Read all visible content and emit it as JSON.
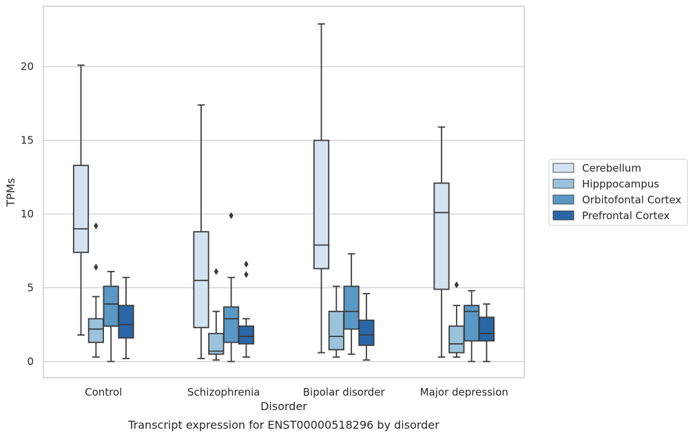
{
  "chart_data": {
    "type": "box",
    "title": "",
    "xlabel": "Disorder",
    "ylabel": "TPMs",
    "caption": "Transcript expression for ENST00000518296 by disorder",
    "ylim": [
      -1.1,
      24.1
    ],
    "yticks": [
      0,
      5,
      10,
      15,
      20
    ],
    "grid": "horizontal",
    "legend_position": "center-right",
    "categories": [
      "Control",
      "Schizophrenia",
      "Bipolar disorder",
      "Major depression"
    ],
    "series": [
      {
        "name": "Cerebellum",
        "color": "#d4e3f2",
        "boxes": [
          {
            "whislo": 1.8,
            "q1": 7.4,
            "med": 9.0,
            "q3": 13.3,
            "whishi": 20.1,
            "fliers": []
          },
          {
            "whislo": 0.2,
            "q1": 2.3,
            "med": 5.5,
            "q3": 8.8,
            "whishi": 17.4,
            "fliers": []
          },
          {
            "whislo": 0.6,
            "q1": 6.3,
            "med": 7.9,
            "q3": 15.0,
            "whishi": 22.9,
            "fliers": []
          },
          {
            "whislo": 0.3,
            "q1": 4.9,
            "med": 10.1,
            "q3": 12.1,
            "whishi": 15.9,
            "fliers": []
          }
        ]
      },
      {
        "name": "Hipppocampus",
        "color": "#9cc3dc",
        "boxes": [
          {
            "whislo": 0.3,
            "q1": 1.3,
            "med": 2.2,
            "q3": 2.9,
            "whishi": 4.4,
            "fliers": [
              9.2,
              6.4
            ]
          },
          {
            "whislo": 0.1,
            "q1": 0.5,
            "med": 0.7,
            "q3": 1.9,
            "whishi": 3.4,
            "fliers": [
              6.1
            ]
          },
          {
            "whislo": 0.3,
            "q1": 0.8,
            "med": 1.7,
            "q3": 3.4,
            "whishi": 5.1,
            "fliers": []
          },
          {
            "whislo": 0.3,
            "q1": 0.6,
            "med": 1.2,
            "q3": 2.4,
            "whishi": 3.8,
            "fliers": [
              5.2
            ]
          }
        ]
      },
      {
        "name": "Orbitofontal Cortex",
        "color": "#5a98c5",
        "boxes": [
          {
            "whislo": 0.0,
            "q1": 2.4,
            "med": 3.9,
            "q3": 5.1,
            "whishi": 6.1,
            "fliers": []
          },
          {
            "whislo": 0.0,
            "q1": 1.3,
            "med": 2.9,
            "q3": 3.7,
            "whishi": 5.7,
            "fliers": [
              9.9
            ]
          },
          {
            "whislo": 0.5,
            "q1": 2.2,
            "med": 3.4,
            "q3": 5.1,
            "whishi": 7.3,
            "fliers": []
          },
          {
            "whislo": 0.0,
            "q1": 1.4,
            "med": 3.4,
            "q3": 3.8,
            "whishi": 4.8,
            "fliers": []
          }
        ]
      },
      {
        "name": "Prefrontal Cortex",
        "color": "#2a67a7",
        "boxes": [
          {
            "whislo": 0.2,
            "q1": 1.6,
            "med": 2.5,
            "q3": 3.8,
            "whishi": 5.7,
            "fliers": []
          },
          {
            "whislo": 0.3,
            "q1": 1.2,
            "med": 1.7,
            "q3": 2.4,
            "whishi": 2.9,
            "fliers": [
              6.6,
              5.9
            ]
          },
          {
            "whislo": 0.1,
            "q1": 1.1,
            "med": 1.8,
            "q3": 2.8,
            "whishi": 4.6,
            "fliers": []
          },
          {
            "whislo": 0.0,
            "q1": 1.4,
            "med": 1.9,
            "q3": 3.0,
            "whishi": 3.9,
            "fliers": []
          }
        ]
      }
    ]
  }
}
